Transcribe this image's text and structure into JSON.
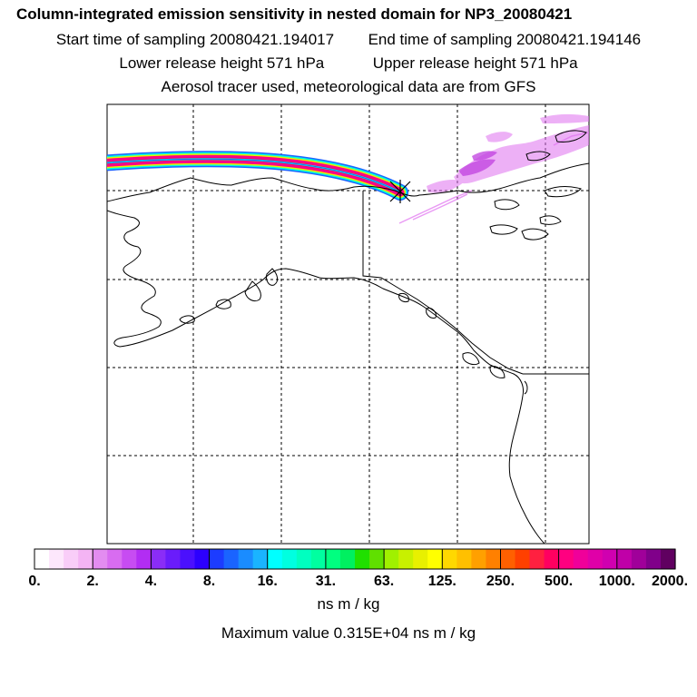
{
  "header": {
    "title": "Column-integrated emission sensitivity in nested domain for NP3_20080421",
    "start_time": "Start time of sampling 20080421.194017",
    "end_time": "End time of sampling 20080421.194146",
    "lower_release": "Lower release height  571 hPa",
    "upper_release": "Upper release height  571 hPa",
    "tracer_note": "Aerosol tracer used, meteorological data are from GFS"
  },
  "colorbar": {
    "labels": [
      "0.",
      "2.",
      "4.",
      "8.",
      "16.",
      "31.",
      "63.",
      "125.",
      "250.",
      "500.",
      "1000.",
      "2000."
    ],
    "colors": [
      "#ffffff",
      "#fde7fc",
      "#f9cdf8",
      "#f4b4f4",
      "#e38cf0",
      "#d86cf0",
      "#c74cf2",
      "#b22df3",
      "#8a2df7",
      "#6a1cfb",
      "#4b10fd",
      "#2c00ff",
      "#1c3cff",
      "#1a64ff",
      "#1a8cff",
      "#1ab4ff",
      "#00ffff",
      "#00ffe0",
      "#00ffc0",
      "#00ffa0",
      "#00ff80",
      "#00f060",
      "#20e000",
      "#60e000",
      "#a0f000",
      "#c8f000",
      "#e8f000",
      "#ffff00",
      "#ffd800",
      "#ffc000",
      "#ffa000",
      "#ff8000",
      "#ff6000",
      "#ff4000",
      "#ff2040",
      "#ff0060",
      "#ff0080",
      "#f0009a",
      "#e000a8",
      "#d000b0",
      "#c000a8",
      "#a0009a",
      "#80008a",
      "#600060"
    ],
    "units": "ns m / kg"
  },
  "footer": {
    "max_value": "Maximum value  0.315E+04 ns m / kg"
  },
  "map": {
    "release_marker": "release-point",
    "plume_colors": [
      "#1a64ff",
      "#00ffe0",
      "#e8f000",
      "#ff0080",
      "#f0009a",
      "#ff0060",
      "#00ffe0",
      "#1a64ff"
    ]
  }
}
